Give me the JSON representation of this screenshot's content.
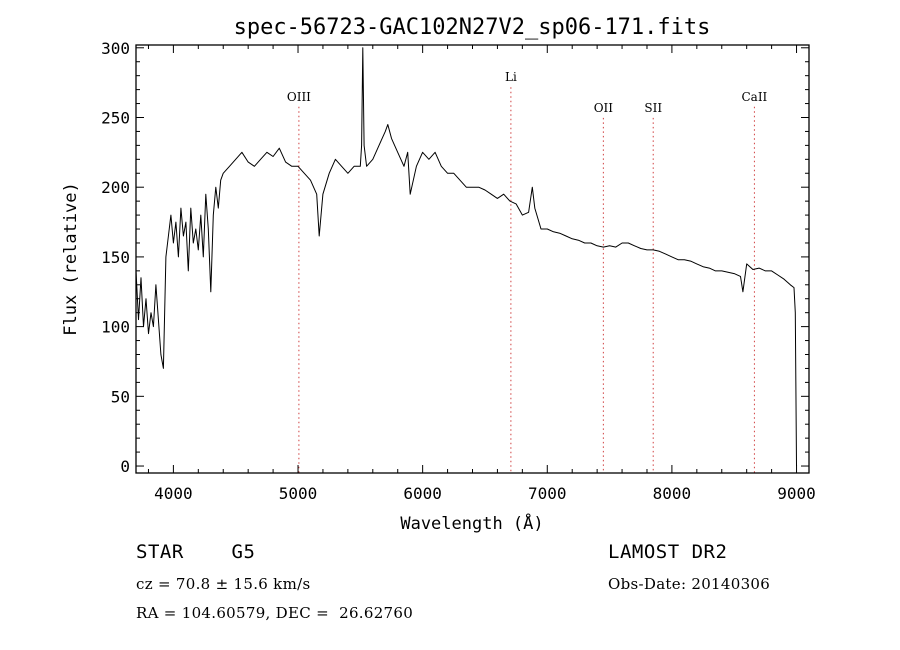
{
  "chart_data": {
    "type": "line",
    "title": "spec-56723-GAC102N27V2_sp06-171.fits",
    "xlabel": "Wavelength (Å)",
    "ylabel": "Flux (relative)",
    "xlim": [
      3700,
      9100
    ],
    "ylim": [
      -5,
      302
    ],
    "xticks": [
      4000,
      5000,
      6000,
      7000,
      8000,
      9000
    ],
    "yticks": [
      0,
      50,
      100,
      150,
      200,
      250,
      300
    ],
    "series": [
      {
        "x": [
          3700,
          3720,
          3740,
          3760,
          3780,
          3800,
          3820,
          3840,
          3860,
          3880,
          3900,
          3920,
          3940,
          3960,
          3980,
          4000,
          4020,
          4040,
          4060,
          4080,
          4100,
          4120,
          4140,
          4160,
          4180,
          4200,
          4220,
          4240,
          4260,
          4280,
          4300,
          4320,
          4340,
          4360,
          4380,
          4400,
          4450,
          4500,
          4550,
          4600,
          4650,
          4700,
          4750,
          4800,
          4850,
          4900,
          4950,
          5000,
          5050,
          5100,
          5150,
          5170,
          5200,
          5250,
          5300,
          5350,
          5400,
          5450,
          5500,
          5510,
          5520,
          5530,
          5550,
          5600,
          5650,
          5700,
          5720,
          5750,
          5800,
          5850,
          5880,
          5900,
          5950,
          6000,
          6050,
          6100,
          6150,
          6200,
          6250,
          6300,
          6350,
          6400,
          6450,
          6500,
          6550,
          6600,
          6650,
          6700,
          6750,
          6800,
          6850,
          6880,
          6900,
          6950,
          7000,
          7050,
          7100,
          7150,
          7200,
          7250,
          7300,
          7350,
          7400,
          7450,
          7500,
          7550,
          7600,
          7650,
          7700,
          7750,
          7800,
          7850,
          7900,
          7950,
          8000,
          8050,
          8100,
          8150,
          8200,
          8250,
          8300,
          8350,
          8400,
          8450,
          8500,
          8550,
          8570,
          8600,
          8650,
          8700,
          8750,
          8800,
          8850,
          8900,
          8950,
          8980,
          8990,
          9000
        ],
        "values": [
          140,
          105,
          135,
          100,
          120,
          95,
          110,
          100,
          130,
          105,
          80,
          70,
          150,
          165,
          180,
          160,
          175,
          150,
          185,
          165,
          175,
          140,
          185,
          160,
          170,
          155,
          180,
          150,
          195,
          170,
          125,
          180,
          200,
          185,
          205,
          210,
          215,
          220,
          225,
          218,
          215,
          220,
          225,
          222,
          228,
          218,
          215,
          215,
          210,
          205,
          195,
          165,
          195,
          210,
          220,
          215,
          210,
          215,
          215,
          230,
          300,
          230,
          215,
          220,
          230,
          240,
          245,
          235,
          225,
          215,
          225,
          195,
          215,
          225,
          220,
          225,
          215,
          210,
          210,
          205,
          200,
          200,
          200,
          198,
          195,
          192,
          195,
          190,
          188,
          180,
          182,
          200,
          185,
          170,
          170,
          168,
          167,
          165,
          163,
          162,
          160,
          160,
          158,
          157,
          158,
          157,
          160,
          160,
          158,
          156,
          155,
          155,
          154,
          152,
          150,
          148,
          148,
          147,
          145,
          143,
          142,
          140,
          140,
          139,
          138,
          136,
          125,
          145,
          141,
          142,
          140,
          140,
          137,
          134,
          130,
          128,
          110,
          0
        ]
      }
    ],
    "annotations": [
      {
        "label": "OIII",
        "x": 5007
      },
      {
        "label": "Li",
        "x": 6708
      },
      {
        "label": "OII",
        "x": 7450
      },
      {
        "label": "SII",
        "x": 7850
      },
      {
        "label": "CaII",
        "x": 8662
      }
    ],
    "grid": false
  },
  "info": {
    "class_label": "STAR    G5",
    "redshift": "cz = 70.8 ± 15.6 km/s",
    "coords": "RA = 104.60579, DEC =  26.62760",
    "survey": "LAMOST DR2",
    "obs_date": "Obs-Date: 20140306"
  }
}
